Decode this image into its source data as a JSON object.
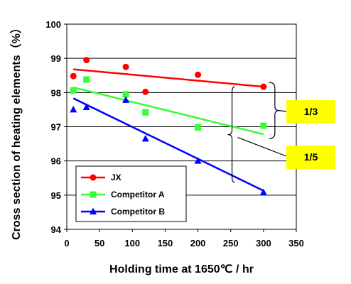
{
  "chart_data": {
    "type": "scatter",
    "xlabel": "Holding time at 1650℃ / hr",
    "ylabel": "Cross section of heating elements（%）",
    "xlim": [
      0,
      350
    ],
    "ylim": [
      94,
      100
    ],
    "xticks": [
      "0",
      "50",
      "100",
      "150",
      "200",
      "250",
      "300",
      "350"
    ],
    "yticks": [
      "94",
      "95",
      "96",
      "97",
      "98",
      "99",
      "100"
    ],
    "grid": "horizontal",
    "legend_position": "bottom-left",
    "series": [
      {
        "name": "JX",
        "color": "#ff0000",
        "marker": "circle",
        "points": [
          [
            10,
            98.48
          ],
          [
            30,
            98.95
          ],
          [
            90,
            98.75
          ],
          [
            120,
            98.02
          ],
          [
            200,
            98.52
          ],
          [
            300,
            98.17
          ]
        ],
        "trend": [
          [
            10,
            98.68
          ],
          [
            300,
            98.17
          ]
        ]
      },
      {
        "name": "Competitor A",
        "color": "#33ff33",
        "marker": "square",
        "points": [
          [
            10,
            98.06
          ],
          [
            30,
            98.38
          ],
          [
            90,
            97.95
          ],
          [
            120,
            97.42
          ],
          [
            200,
            96.98
          ],
          [
            300,
            97.03
          ]
        ],
        "trend": [
          [
            10,
            98.15
          ],
          [
            300,
            96.78
          ]
        ]
      },
      {
        "name": "Competitor B",
        "color": "#0000ff",
        "marker": "triangle",
        "points": [
          [
            10,
            97.5
          ],
          [
            30,
            97.57
          ],
          [
            90,
            97.78
          ],
          [
            120,
            96.65
          ],
          [
            200,
            96.0
          ],
          [
            300,
            95.08
          ]
        ],
        "trend": [
          [
            10,
            97.83
          ],
          [
            300,
            95.13
          ]
        ]
      }
    ],
    "annotations": [
      {
        "text": "1/3",
        "color": "#ffff00"
      },
      {
        "text": "1/5",
        "color": "#ffff00"
      }
    ]
  }
}
